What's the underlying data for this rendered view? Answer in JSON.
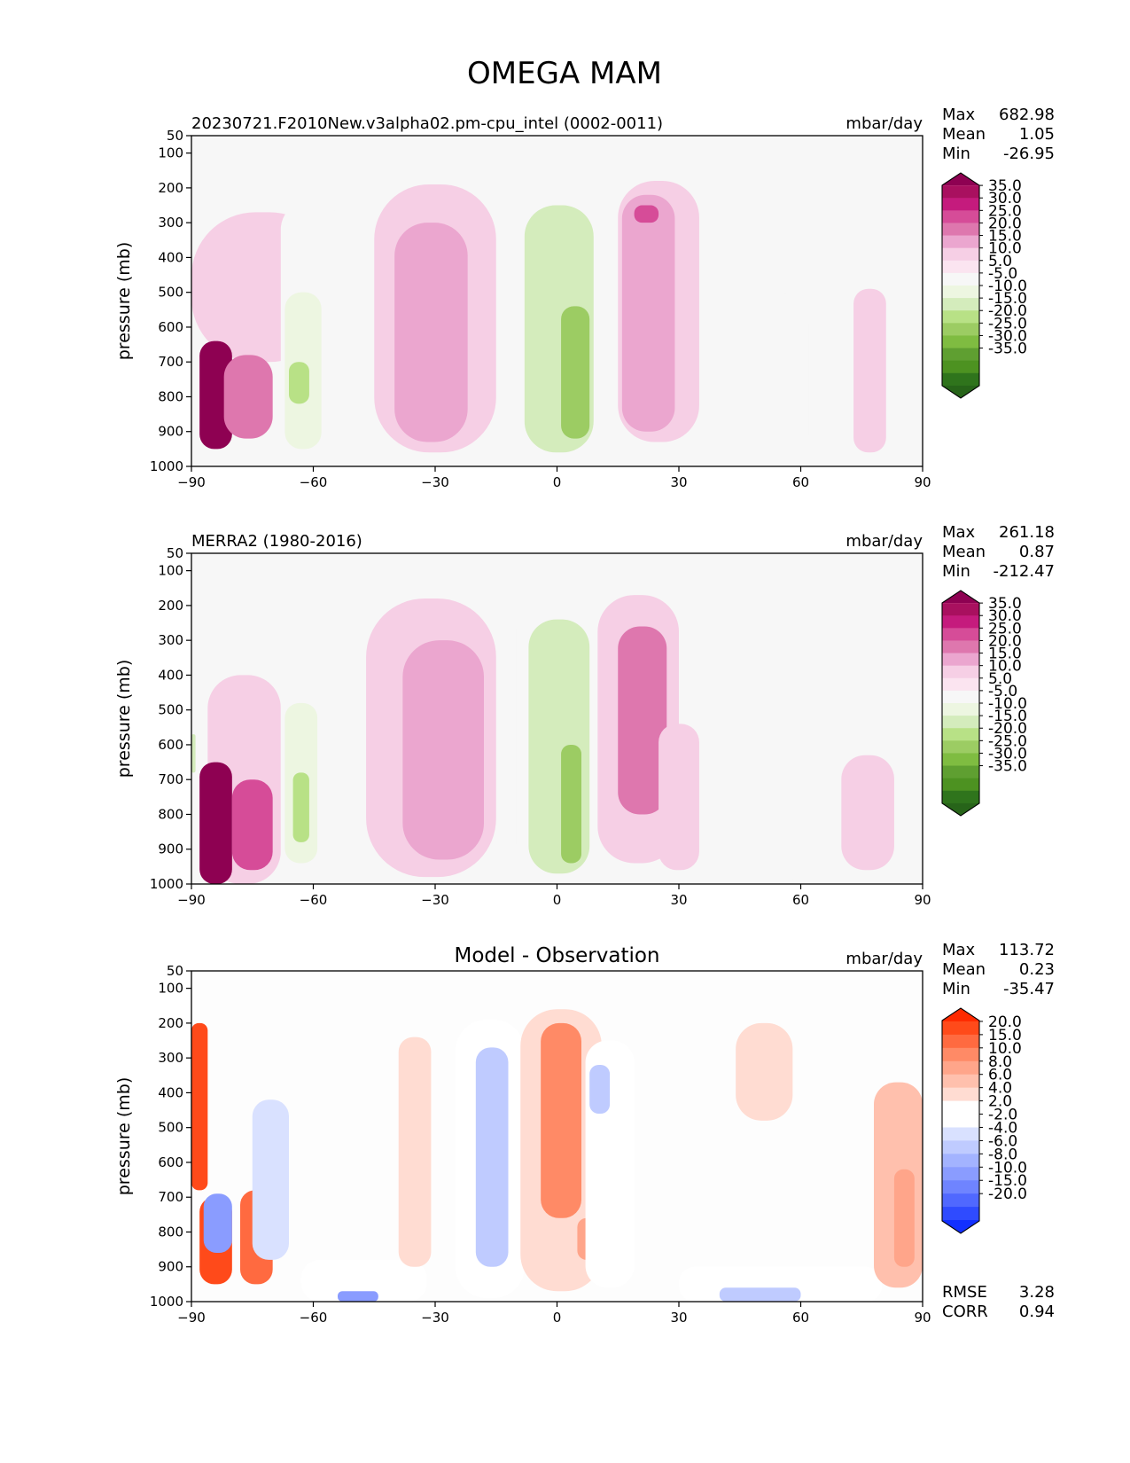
{
  "figure_title": "OMEGA MAM",
  "chart_data": [
    {
      "type": "heatmap",
      "subtype": "filled-contour",
      "id": "panel-model",
      "title": "20230721.F2010New.v3alpha02.pm-cpu_intel (0002-0011)",
      "center_title": "",
      "units": "mbar/day",
      "xlabel": "",
      "ylabel": "pressure (mb)",
      "xlim": [
        -90,
        90
      ],
      "ylim": [
        1000,
        50
      ],
      "x_ticks": [
        "−90",
        "−60",
        "−30",
        "0",
        "30",
        "60",
        "90"
      ],
      "x_tick_values": [
        -90,
        -60,
        -30,
        0,
        30,
        60,
        90
      ],
      "y_ticks": [
        "50",
        "100",
        "200",
        "300",
        "400",
        "500",
        "600",
        "700",
        "800",
        "900",
        "1000"
      ],
      "y_tick_values": [
        50,
        100,
        200,
        300,
        400,
        500,
        600,
        700,
        800,
        900,
        1000
      ],
      "stats": [
        {
          "label": "Max",
          "value": "682.98"
        },
        {
          "label": "Mean",
          "value": "1.05"
        },
        {
          "label": "Min",
          "value": "-26.95"
        }
      ],
      "colorbar": {
        "extend": "both",
        "tick_labels": [
          "35.0",
          "30.0",
          "25.0",
          "20.0",
          "15.0",
          "10.0",
          "5.0",
          "-5.0",
          "-10.0",
          "-15.0",
          "-20.0",
          "-25.0",
          "-30.0",
          "-35.0"
        ],
        "colors": [
          "#8e0152",
          "#a9105f",
          "#c51b7d",
          "#d64c98",
          "#de77ae",
          "#eba6cf",
          "#f6cfe5",
          "#fbe4f0",
          "#f7f7f7",
          "#edf6e1",
          "#d4ecbc",
          "#b8e186",
          "#9ccc63",
          "#7fbc41",
          "#5f9f31",
          "#4d9221",
          "#2f741c",
          "#276419"
        ]
      },
      "regions": [
        {
          "lat": [
            -90,
            -55
          ],
          "p": [
            270,
            700
          ],
          "value": 7
        },
        {
          "lat": [
            -88,
            -80
          ],
          "p": [
            640,
            950
          ],
          "value": 40
        },
        {
          "lat": [
            -82,
            -70
          ],
          "p": [
            680,
            920
          ],
          "value": 18
        },
        {
          "lat": [
            -68,
            -53
          ],
          "p": [
            240,
            1000
          ],
          "value": -8
        },
        {
          "lat": [
            -67,
            -58
          ],
          "p": [
            500,
            950
          ],
          "value": -14
        },
        {
          "lat": [
            -66,
            -61
          ],
          "p": [
            700,
            820
          ],
          "value": -22
        },
        {
          "lat": [
            -45,
            -15
          ],
          "p": [
            190,
            960
          ],
          "value": 7
        },
        {
          "lat": [
            -40,
            -22
          ],
          "p": [
            300,
            930
          ],
          "value": 11
        },
        {
          "lat": [
            -14,
            9
          ],
          "p": [
            170,
            980
          ],
          "value": -8
        },
        {
          "lat": [
            -8,
            9
          ],
          "p": [
            250,
            960
          ],
          "value": -18
        },
        {
          "lat": [
            1,
            8
          ],
          "p": [
            540,
            920
          ],
          "value": -28
        },
        {
          "lat": [
            15,
            35
          ],
          "p": [
            180,
            930
          ],
          "value": 8
        },
        {
          "lat": [
            16,
            29
          ],
          "p": [
            220,
            900
          ],
          "value": 13
        },
        {
          "lat": [
            19,
            25
          ],
          "p": [
            250,
            300
          ],
          "value": 23
        },
        {
          "lat": [
            45,
            62
          ],
          "p": [
            500,
            1000
          ],
          "value": -7
        },
        {
          "lat": [
            73,
            81
          ],
          "p": [
            490,
            960
          ],
          "value": 6
        }
      ]
    },
    {
      "type": "heatmap",
      "subtype": "filled-contour",
      "id": "panel-obs",
      "title": "MERRA2 (1980-2016)",
      "center_title": "",
      "units": "mbar/day",
      "xlabel": "",
      "ylabel": "pressure (mb)",
      "xlim": [
        -90,
        90
      ],
      "ylim": [
        1000,
        50
      ],
      "x_ticks": [
        "−90",
        "−60",
        "−30",
        "0",
        "30",
        "60",
        "90"
      ],
      "x_tick_values": [
        -90,
        -60,
        -30,
        0,
        30,
        60,
        90
      ],
      "y_ticks": [
        "50",
        "100",
        "200",
        "300",
        "400",
        "500",
        "600",
        "700",
        "800",
        "900",
        "1000"
      ],
      "y_tick_values": [
        50,
        100,
        200,
        300,
        400,
        500,
        600,
        700,
        800,
        900,
        1000
      ],
      "stats": [
        {
          "label": "Max",
          "value": "261.18"
        },
        {
          "label": "Mean",
          "value": "0.87"
        },
        {
          "label": "Min",
          "value": "-212.47"
        }
      ],
      "colorbar": {
        "extend": "both",
        "tick_labels": [
          "35.0",
          "30.0",
          "25.0",
          "20.0",
          "15.0",
          "10.0",
          "5.0",
          "-5.0",
          "-10.0",
          "-15.0",
          "-20.0",
          "-25.0",
          "-30.0",
          "-35.0"
        ],
        "colors": [
          "#8e0152",
          "#a9105f",
          "#c51b7d",
          "#d64c98",
          "#de77ae",
          "#eba6cf",
          "#f6cfe5",
          "#fbe4f0",
          "#f7f7f7",
          "#edf6e1",
          "#d4ecbc",
          "#b8e186",
          "#9ccc63",
          "#7fbc41",
          "#5f9f31",
          "#4d9221",
          "#2f741c",
          "#276419"
        ]
      },
      "regions": [
        {
          "lat": [
            -86,
            -68
          ],
          "p": [
            400,
            1000
          ],
          "value": 8
        },
        {
          "lat": [
            -88,
            -80
          ],
          "p": [
            650,
            1000
          ],
          "value": 40
        },
        {
          "lat": [
            -80,
            -70
          ],
          "p": [
            700,
            960
          ],
          "value": 22
        },
        {
          "lat": [
            -90,
            -89
          ],
          "p": [
            570,
            680
          ],
          "value": -20
        },
        {
          "lat": [
            -68,
            -54
          ],
          "p": [
            240,
            980
          ],
          "value": -9
        },
        {
          "lat": [
            -67,
            -59
          ],
          "p": [
            480,
            940
          ],
          "value": -15
        },
        {
          "lat": [
            -65,
            -61
          ],
          "p": [
            680,
            880
          ],
          "value": -23
        },
        {
          "lat": [
            -47,
            -15
          ],
          "p": [
            180,
            980
          ],
          "value": 7
        },
        {
          "lat": [
            -38,
            -18
          ],
          "p": [
            300,
            930
          ],
          "value": 11
        },
        {
          "lat": [
            -10,
            10
          ],
          "p": [
            160,
            990
          ],
          "value": -9
        },
        {
          "lat": [
            -7,
            8
          ],
          "p": [
            240,
            970
          ],
          "value": -20
        },
        {
          "lat": [
            1,
            6
          ],
          "p": [
            600,
            940
          ],
          "value": -30
        },
        {
          "lat": [
            10,
            30
          ],
          "p": [
            170,
            940
          ],
          "value": 9
        },
        {
          "lat": [
            15,
            27
          ],
          "p": [
            260,
            800
          ],
          "value": 17
        },
        {
          "lat": [
            25,
            35
          ],
          "p": [
            540,
            960
          ],
          "value": 5
        },
        {
          "lat": [
            52,
            60
          ],
          "p": [
            410,
            990
          ],
          "value": -6
        },
        {
          "lat": [
            70,
            83
          ],
          "p": [
            630,
            960
          ],
          "value": 6
        }
      ]
    },
    {
      "type": "heatmap",
      "subtype": "filled-contour",
      "id": "panel-diff",
      "title": "",
      "center_title": "Model - Observation",
      "units": "mbar/day",
      "xlabel": "",
      "ylabel": "pressure (mb)",
      "xlim": [
        -90,
        90
      ],
      "ylim": [
        1000,
        50
      ],
      "x_ticks": [
        "−90",
        "−60",
        "−30",
        "0",
        "30",
        "60",
        "90"
      ],
      "x_tick_values": [
        -90,
        -60,
        -30,
        0,
        30,
        60,
        90
      ],
      "y_ticks": [
        "50",
        "100",
        "200",
        "300",
        "400",
        "500",
        "600",
        "700",
        "800",
        "900",
        "1000"
      ],
      "y_tick_values": [
        50,
        100,
        200,
        300,
        400,
        500,
        600,
        700,
        800,
        900,
        1000
      ],
      "stats": [
        {
          "label": "Max",
          "value": "113.72"
        },
        {
          "label": "Mean",
          "value": "0.23"
        },
        {
          "label": "Min",
          "value": "-35.47"
        }
      ],
      "extra_stats": [
        {
          "label": "RMSE",
          "value": "3.28"
        },
        {
          "label": "CORR",
          "value": "0.94"
        }
      ],
      "colorbar": {
        "extend": "both",
        "tick_labels": [
          "20.0",
          "15.0",
          "10.0",
          "8.0",
          "6.0",
          "4.0",
          "2.0",
          "-2.0",
          "-4.0",
          "-6.0",
          "-8.0",
          "-10.0",
          "-15.0",
          "-20.0"
        ],
        "colors": [
          "#ff2a00",
          "#ff4a1a",
          "#ff6a40",
          "#ff8a66",
          "#ffa58a",
          "#ffc0ad",
          "#ffdcd2",
          "#ffffff",
          "#ffffff",
          "#d9e1ff",
          "#bfcbff",
          "#a3b3ff",
          "#8a9cff",
          "#6f84ff",
          "#5068ff",
          "#2f4bff",
          "#1230ff"
        ]
      },
      "regions": [
        {
          "lat": [
            -90,
            -86
          ],
          "p": [
            200,
            680
          ],
          "value": 18
        },
        {
          "lat": [
            -88,
            -80
          ],
          "p": [
            700,
            950
          ],
          "value": 18
        },
        {
          "lat": [
            -78,
            -70
          ],
          "p": [
            680,
            950
          ],
          "value": 14
        },
        {
          "lat": [
            -87,
            -80
          ],
          "p": [
            690,
            860
          ],
          "value": -12
        },
        {
          "lat": [
            -75,
            -66
          ],
          "p": [
            420,
            880
          ],
          "value": -5
        },
        {
          "lat": [
            -63,
            -32
          ],
          "p": [
            880,
            1000
          ],
          "value": -4
        },
        {
          "lat": [
            -54,
            -44
          ],
          "p": [
            970,
            1000
          ],
          "value": -12
        },
        {
          "lat": [
            -39,
            -31
          ],
          "p": [
            240,
            900
          ],
          "value": 3
        },
        {
          "lat": [
            -25,
            -8
          ],
          "p": [
            190,
            990
          ],
          "value": -4
        },
        {
          "lat": [
            -20,
            -12
          ],
          "p": [
            270,
            900
          ],
          "value": -8
        },
        {
          "lat": [
            -9,
            11
          ],
          "p": [
            160,
            970
          ],
          "value": 3
        },
        {
          "lat": [
            -4,
            6
          ],
          "p": [
            200,
            760
          ],
          "value": 8
        },
        {
          "lat": [
            5,
            10
          ],
          "p": [
            760,
            880
          ],
          "value": 6
        },
        {
          "lat": [
            7,
            19
          ],
          "p": [
            250,
            960
          ],
          "value": -4
        },
        {
          "lat": [
            8,
            13
          ],
          "p": [
            320,
            460
          ],
          "value": -8
        },
        {
          "lat": [
            30,
            80
          ],
          "p": [
            900,
            1000
          ],
          "value": -4
        },
        {
          "lat": [
            40,
            60
          ],
          "p": [
            960,
            1000
          ],
          "value": -8
        },
        {
          "lat": [
            44,
            58
          ],
          "p": [
            200,
            480
          ],
          "value": 3
        },
        {
          "lat": [
            78,
            90
          ],
          "p": [
            370,
            960
          ],
          "value": 4
        },
        {
          "lat": [
            83,
            88
          ],
          "p": [
            620,
            900
          ],
          "value": 7
        }
      ]
    }
  ]
}
